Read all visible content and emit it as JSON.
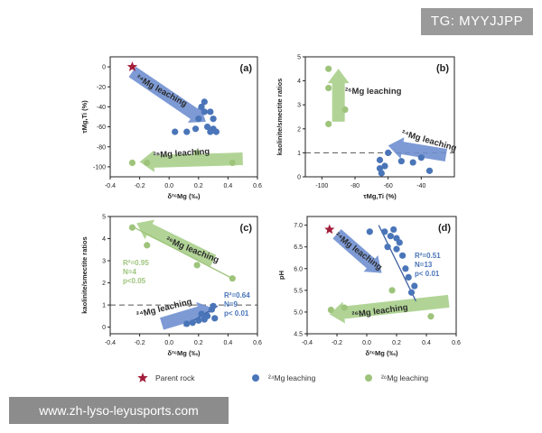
{
  "watermark": {
    "tg": "TG: MYYJJPP",
    "url": "www.zh-lyso-leyusports.com"
  },
  "colors": {
    "parent": "#a31d3a",
    "mg24": "#4a75b8",
    "mg26": "#9ec47c",
    "arrow_blue": "#6f8fd0",
    "arrow_green": "#a9cf8b",
    "ref_line": "#555555",
    "axis": "#222222"
  },
  "legend": {
    "items": [
      {
        "label": "Parent rock",
        "marker": "star",
        "color": "#a31d3a"
      },
      {
        "label": "²⁴Mg leaching",
        "marker": "circle",
        "color": "#4a75b8"
      },
      {
        "label": "²⁶Mg leaching",
        "marker": "circle",
        "color": "#9ec47c"
      }
    ]
  },
  "chart_data": [
    {
      "panel": "(a)",
      "type": "scatter",
      "xlabel": "δ²⁶Mg (‰)",
      "ylabel": "τMg,Ti (%)",
      "xlim": [
        -0.4,
        0.6
      ],
      "ylim": [
        -110,
        10
      ],
      "xticks": [
        -0.4,
        -0.2,
        0,
        0.2,
        0.4,
        0.6
      ],
      "xtick_labels": [
        "-0.4",
        "-0.2",
        "0.0",
        "0.2",
        "0.4",
        "0.6"
      ],
      "yticks": [
        0,
        -20,
        -40,
        -60,
        -80,
        -100
      ],
      "ytick_labels": [
        "0",
        "-20",
        "-40",
        "-60",
        "-80",
        "-100"
      ],
      "series": [
        {
          "name": "Parent rock",
          "marker": "star",
          "points": [
            [
              -0.25,
              0
            ]
          ]
        },
        {
          "name": "²⁴Mg leaching",
          "marker": "circle",
          "points": [
            [
              0.04,
              -65
            ],
            [
              0.12,
              -65
            ],
            [
              0.18,
              -62
            ],
            [
              0.2,
              -52
            ],
            [
              0.22,
              -40
            ],
            [
              0.24,
              -35
            ],
            [
              0.24,
              -45
            ],
            [
              0.26,
              -60
            ],
            [
              0.28,
              -45
            ],
            [
              0.28,
              -65
            ],
            [
              0.3,
              -52
            ],
            [
              0.3,
              -62
            ],
            [
              0.32,
              -65
            ]
          ]
        },
        {
          "name": "²⁶Mg leaching",
          "marker": "circle",
          "points": [
            [
              -0.25,
              -96
            ],
            [
              -0.15,
              -96
            ],
            [
              0.19,
              -86
            ],
            [
              0.43,
              -96
            ]
          ]
        }
      ],
      "annotations": [
        {
          "text": "²⁴Mg leaching",
          "from": [
            -0.25,
            -5
          ],
          "to": [
            0.25,
            -55
          ],
          "color": "blue"
        },
        {
          "text": "²⁶Mg leaching",
          "from": [
            0.5,
            -92
          ],
          "to": [
            -0.2,
            -95
          ],
          "color": "green"
        }
      ]
    },
    {
      "panel": "(b)",
      "type": "scatter",
      "xlabel": "τMg,Ti (%)",
      "ylabel": "kaolinite/smectite ratios",
      "xlim": [
        -110,
        -20
      ],
      "ylim": [
        0,
        5
      ],
      "xticks": [
        -100,
        -80,
        -60,
        -40
      ],
      "xtick_labels": [
        "-100",
        "-80",
        "-60",
        "-40"
      ],
      "yticks": [
        0,
        1,
        2,
        3,
        4,
        5
      ],
      "ytick_labels": [
        "0",
        "1",
        "2",
        "3",
        "4",
        "5"
      ],
      "reference_line": {
        "y": 1,
        "style": "dashed"
      },
      "series": [
        {
          "name": "²⁴Mg leaching",
          "marker": "circle",
          "points": [
            [
              -64,
              0.15
            ],
            [
              -65,
              0.35
            ],
            [
              -62,
              0.45
            ],
            [
              -65,
              0.7
            ],
            [
              -60,
              1.0
            ],
            [
              -52,
              0.65
            ],
            [
              -45,
              0.6
            ],
            [
              -40,
              0.8
            ],
            [
              -35,
              0.25
            ]
          ]
        },
        {
          "name": "²⁶Mg leaching",
          "marker": "circle",
          "points": [
            [
              -96,
              4.5
            ],
            [
              -96,
              3.7
            ],
            [
              -86,
              2.8
            ],
            [
              -96,
              2.2
            ]
          ]
        }
      ],
      "annotations": [
        {
          "text": "²⁶Mg leaching",
          "from": [
            -90,
            2.3
          ],
          "to": [
            -90,
            4.5
          ],
          "color": "green"
        },
        {
          "text": "²⁴Mg leaching",
          "from": [
            -25,
            0.9
          ],
          "to": [
            -60,
            1.3
          ],
          "color": "blue"
        }
      ]
    },
    {
      "panel": "(c)",
      "type": "scatter",
      "xlabel": "δ²⁶Mg (‰)",
      "ylabel": "kaolinite/smectite ratios",
      "xlim": [
        -0.4,
        0.6
      ],
      "ylim": [
        -0.3,
        5
      ],
      "xticks": [
        -0.4,
        -0.2,
        0,
        0.2,
        0.4,
        0.6
      ],
      "xtick_labels": [
        "-0.4",
        "-0.2",
        "0.0",
        "0.2",
        "0.4",
        "0.6"
      ],
      "yticks": [
        0,
        1,
        2,
        3,
        4,
        5
      ],
      "ytick_labels": [
        "0",
        "1",
        "2",
        "3",
        "4",
        "5"
      ],
      "reference_line": {
        "y": 1,
        "style": "dashed"
      },
      "series": [
        {
          "name": "²⁴Mg leaching",
          "marker": "circle",
          "points": [
            [
              0.12,
              0.15
            ],
            [
              0.16,
              0.2
            ],
            [
              0.2,
              0.3
            ],
            [
              0.22,
              0.6
            ],
            [
              0.24,
              0.35
            ],
            [
              0.26,
              0.5
            ],
            [
              0.29,
              0.8
            ],
            [
              0.3,
              0.95
            ],
            [
              0.31,
              0.4
            ]
          ]
        },
        {
          "name": "²⁶Mg leaching",
          "marker": "circle",
          "points": [
            [
              -0.25,
              4.5
            ],
            [
              -0.15,
              3.7
            ],
            [
              0.19,
              2.8
            ],
            [
              0.43,
              2.2
            ]
          ]
        }
      ],
      "fits": [
        {
          "series": "²⁶Mg leaching",
          "from": [
            -0.25,
            4.55
          ],
          "to": [
            0.43,
            2.2
          ],
          "color": "green"
        },
        {
          "series": "²⁴Mg leaching",
          "from": [
            0.1,
            0.05
          ],
          "to": [
            0.33,
            0.95
          ],
          "color": "blue"
        }
      ],
      "stats": [
        {
          "lines": [
            "R²=0.95",
            "N=4",
            "p<0.05"
          ],
          "color": "green"
        },
        {
          "lines": [
            "R²=0.64",
            "N=9",
            "p< 0.01"
          ],
          "color": "blue"
        }
      ],
      "annotations": [
        {
          "text": "²⁶Mg leaching",
          "from": [
            0.3,
            3.0
          ],
          "to": [
            -0.22,
            4.7
          ],
          "color": "green"
        },
        {
          "text": "²⁴Mg leaching",
          "from": [
            -0.05,
            0.15
          ],
          "to": [
            0.3,
            0.85
          ],
          "color": "blue"
        }
      ]
    },
    {
      "panel": "(d)",
      "type": "scatter",
      "xlabel": "δ²⁶Mg (‰)",
      "ylabel": "pH",
      "xlim": [
        -0.4,
        0.6
      ],
      "ylim": [
        4.5,
        7.2
      ],
      "xticks": [
        -0.4,
        -0.2,
        0,
        0.2,
        0.4,
        0.6
      ],
      "xtick_labels": [
        "-0.4",
        "-0.2",
        "0.0",
        "0.2",
        "0.4",
        "0.6"
      ],
      "yticks": [
        4.5,
        5.0,
        5.5,
        6.0,
        6.5,
        7.0
      ],
      "ytick_labels": [
        "4.5",
        "5.0",
        "5.5",
        "6.0",
        "6.5",
        "7.0"
      ],
      "series": [
        {
          "name": "Parent rock",
          "marker": "star",
          "points": [
            [
              -0.25,
              6.9
            ]
          ]
        },
        {
          "name": "²⁴Mg leaching",
          "marker": "circle",
          "points": [
            [
              0.02,
              6.85
            ],
            [
              0.12,
              6.85
            ],
            [
              0.14,
              6.5
            ],
            [
              0.16,
              6.75
            ],
            [
              0.18,
              6.9
            ],
            [
              0.2,
              6.7
            ],
            [
              0.2,
              6.45
            ],
            [
              0.22,
              6.6
            ],
            [
              0.24,
              6.3
            ],
            [
              0.26,
              6.0
            ],
            [
              0.28,
              5.8
            ],
            [
              0.3,
              5.45
            ],
            [
              0.32,
              5.6
            ]
          ]
        },
        {
          "name": "²⁶Mg leaching",
          "marker": "circle",
          "points": [
            [
              -0.24,
              5.05
            ],
            [
              -0.15,
              5.1
            ],
            [
              0.17,
              5.5
            ],
            [
              0.43,
              4.9
            ]
          ]
        }
      ],
      "fits": [
        {
          "series": "²⁴Mg leaching",
          "from": [
            0.08,
            7.0
          ],
          "to": [
            0.33,
            5.25
          ],
          "color": "blue"
        }
      ],
      "stats": [
        {
          "lines": [
            "R²=0.51",
            "N=13",
            "p< 0.01"
          ],
          "color": "blue"
        }
      ],
      "annotations": [
        {
          "text": "²⁴Mg leaching",
          "from": [
            -0.2,
            6.8
          ],
          "to": [
            0.1,
            5.9
          ],
          "color": "blue"
        },
        {
          "text": "²⁶Mg leaching",
          "from": [
            0.55,
            5.25
          ],
          "to": [
            -0.25,
            4.95
          ],
          "color": "green"
        }
      ]
    }
  ]
}
